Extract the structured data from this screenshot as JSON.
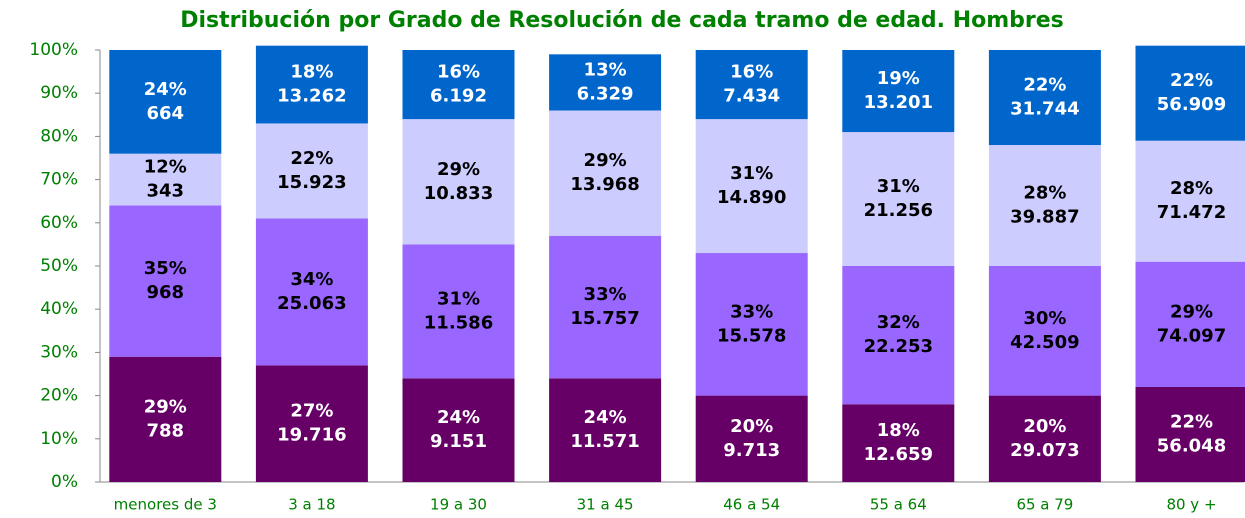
{
  "chart_data": {
    "type": "stacked_bar_percent",
    "title": "Distribución por Grado de Resolución de cada tramo de edad. Hombres",
    "categories": [
      "menores de 3",
      "3 a 18",
      "19 a 30",
      "31 a 45",
      "46 a 54",
      "55 a 64",
      "65 a 79",
      "80 y +"
    ],
    "ylim": [
      0,
      100
    ],
    "yticks": [
      {
        "value": 0,
        "label": "0%"
      },
      {
        "value": 10,
        "label": "10%"
      },
      {
        "value": 20,
        "label": "20%"
      },
      {
        "value": 30,
        "label": "30%"
      },
      {
        "value": 40,
        "label": "40%"
      },
      {
        "value": 50,
        "label": "50%"
      },
      {
        "value": 60,
        "label": "60%"
      },
      {
        "value": 70,
        "label": "70%"
      },
      {
        "value": 80,
        "label": "80%"
      },
      {
        "value": 90,
        "label": "90%"
      },
      {
        "value": 100,
        "label": "100%"
      }
    ],
    "series": [
      {
        "color": "#660066",
        "label_color": "#ffffff",
        "values": [
          29,
          27,
          24,
          24,
          20,
          18,
          20,
          22
        ],
        "value_labels": [
          "29%",
          "27%",
          "24%",
          "24%",
          "20%",
          "18%",
          "20%",
          "22%"
        ],
        "counts": [
          788,
          19716,
          9151,
          11571,
          9713,
          12659,
          29073,
          56048
        ],
        "count_labels": [
          "788",
          "19.716",
          "9.151",
          "11.571",
          "9.713",
          "12.659",
          "29.073",
          "56.048"
        ]
      },
      {
        "color": "#9966ff",
        "label_color": "#000000",
        "values": [
          35,
          34,
          31,
          33,
          33,
          32,
          30,
          29
        ],
        "value_labels": [
          "35%",
          "34%",
          "31%",
          "33%",
          "33%",
          "32%",
          "30%",
          "29%"
        ],
        "counts": [
          968,
          25063,
          11586,
          15757,
          15578,
          22253,
          42509,
          74097
        ],
        "count_labels": [
          "968",
          "25.063",
          "11.586",
          "15.757",
          "15.578",
          "22.253",
          "42.509",
          "74.097"
        ]
      },
      {
        "color": "#ccccff",
        "label_color": "#000000",
        "values": [
          12,
          22,
          29,
          29,
          31,
          31,
          28,
          28
        ],
        "value_labels": [
          "12%",
          "22%",
          "29%",
          "29%",
          "31%",
          "31%",
          "28%",
          "28%"
        ],
        "counts": [
          343,
          15923,
          10833,
          13968,
          14890,
          21256,
          39887,
          71472
        ],
        "count_labels": [
          "343",
          "15.923",
          "10.833",
          "13.968",
          "14.890",
          "21.256",
          "39.887",
          "71.472"
        ]
      },
      {
        "color": "#0066cc",
        "label_color": "#ffffff",
        "values": [
          24,
          18,
          16,
          13,
          16,
          19,
          22,
          22
        ],
        "value_labels": [
          "24%",
          "18%",
          "16%",
          "13%",
          "16%",
          "19%",
          "22%",
          "22%"
        ],
        "counts": [
          664,
          13262,
          6192,
          6329,
          7434,
          13201,
          31744,
          56909
        ],
        "count_labels": [
          "664",
          "13.262",
          "6.192",
          "6.329",
          "7.434",
          "13.201",
          "31.744",
          "56.909"
        ]
      }
    ]
  }
}
